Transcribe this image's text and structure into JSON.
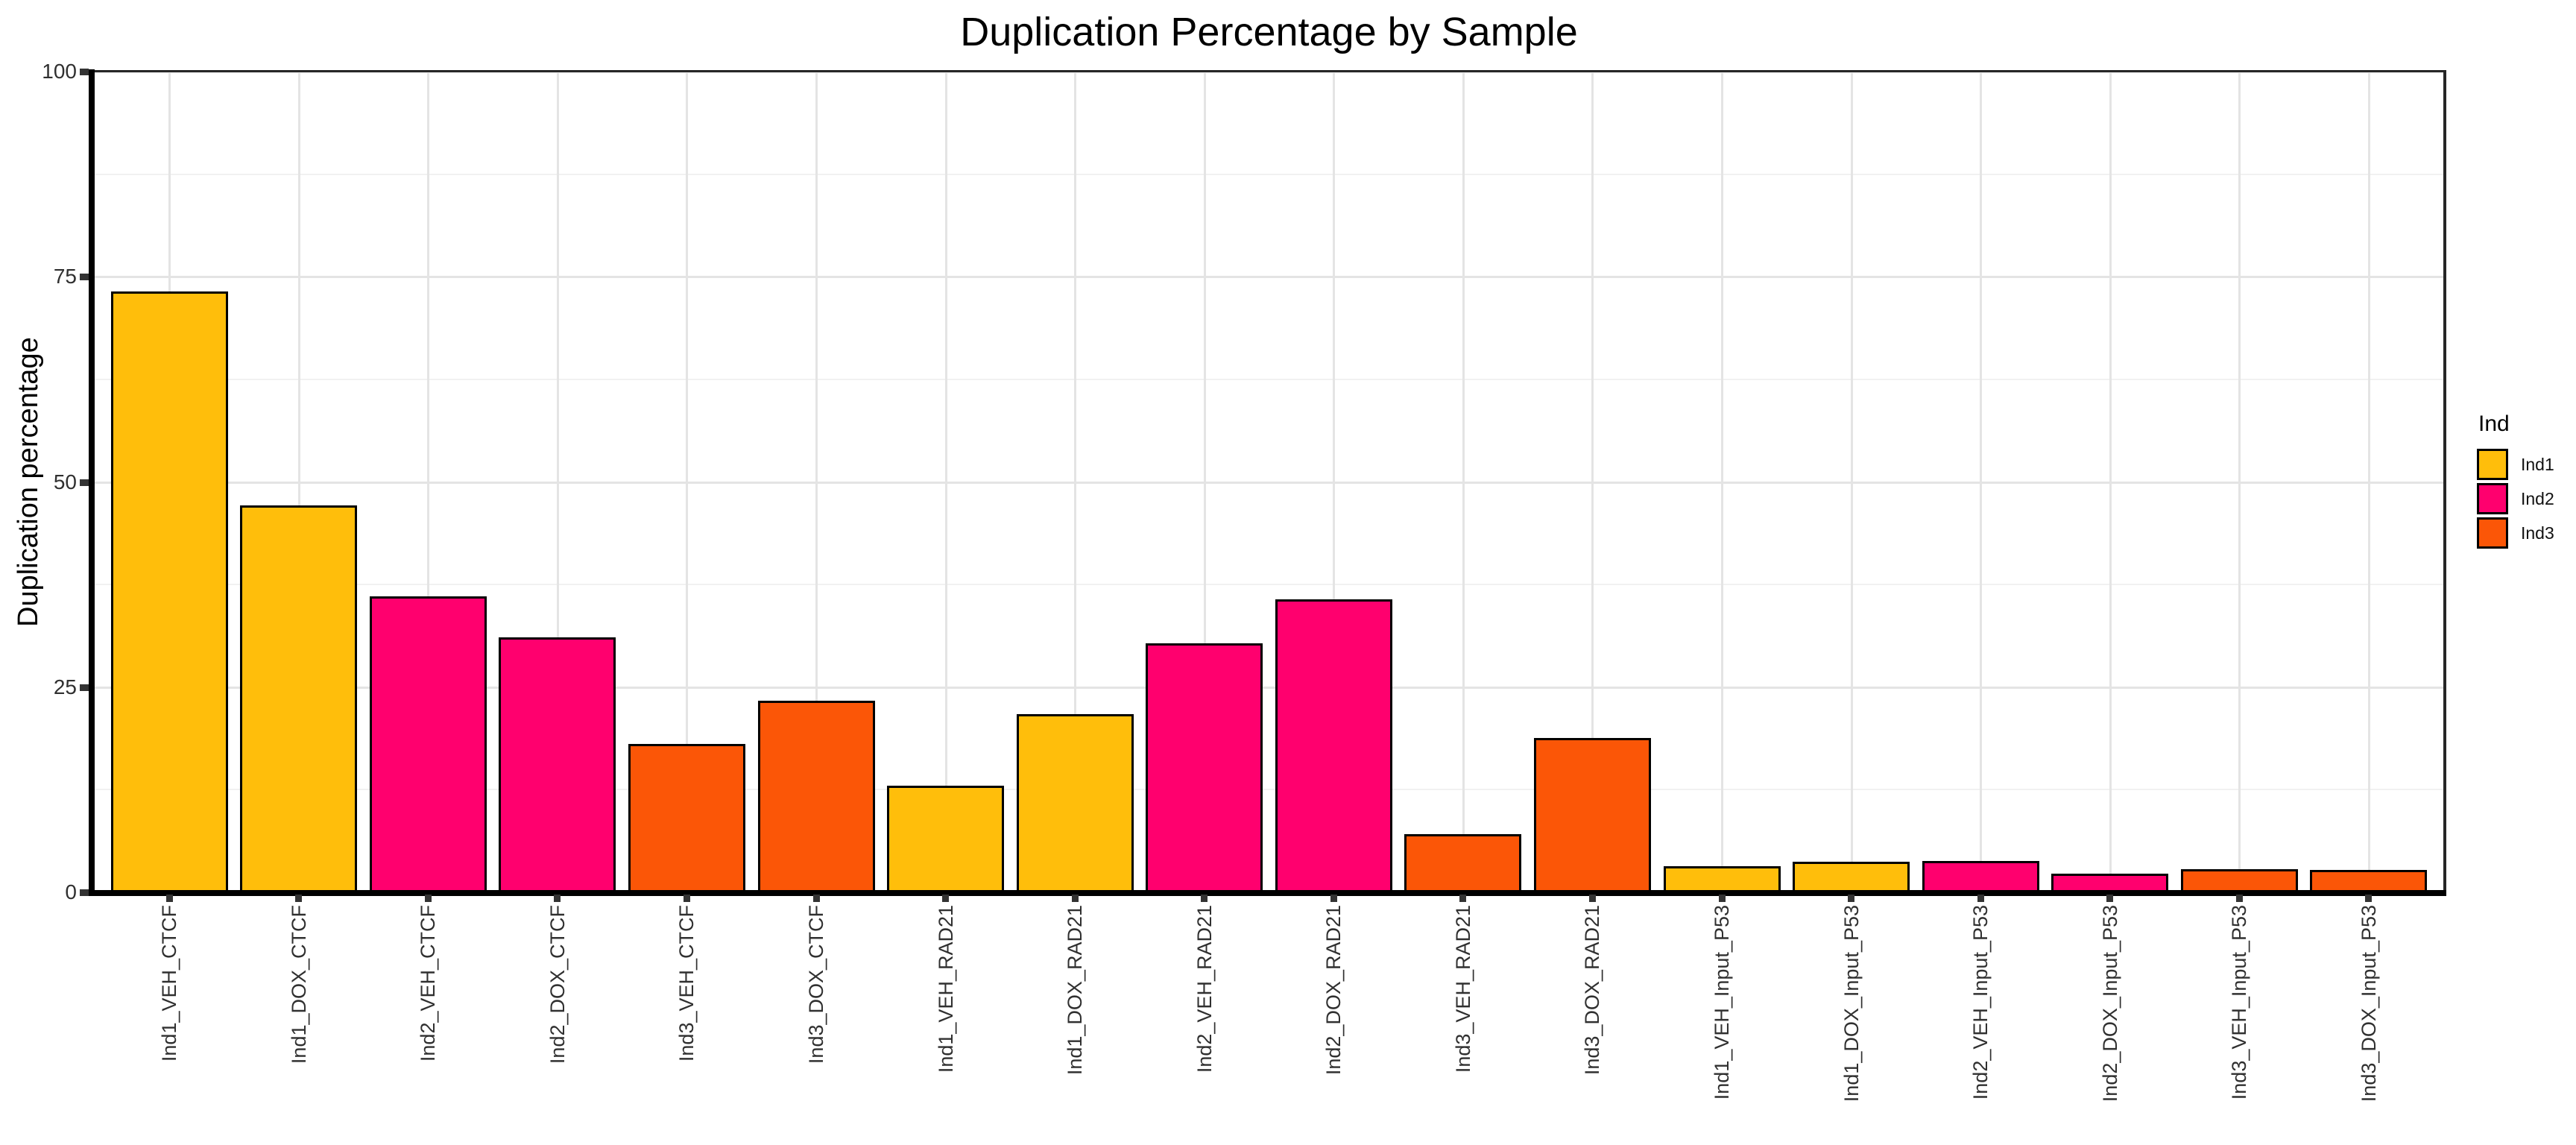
{
  "title": "Duplication Percentage by Sample",
  "y_axis": {
    "label": "Duplication percentage",
    "ticks": [
      0,
      25,
      50,
      75,
      100
    ],
    "minor_ticks": [
      12.5,
      37.5,
      62.5,
      87.5
    ],
    "min": 0,
    "max": 100
  },
  "legend": {
    "title": "Ind",
    "items": [
      {
        "label": "Ind1",
        "color": "#FFBE0B"
      },
      {
        "label": "Ind2",
        "color": "#FF006E"
      },
      {
        "label": "Ind3",
        "color": "#FB5607"
      }
    ]
  },
  "chart_data": {
    "type": "bar",
    "title": "Duplication Percentage by Sample",
    "xlabel": "",
    "ylabel": "Duplication percentage",
    "ylim": [
      0,
      100
    ],
    "grid": "horizontal major every 25, horizontal minor every 12.5, vertical major at each category center",
    "legend_position": "right",
    "legend_title": "Ind",
    "bar_outline_color": "#000000",
    "categories": [
      "Ind1_VEH_CTCF",
      "Ind1_DOX_CTCF",
      "Ind2_VEH_CTCF",
      "Ind2_DOX_CTCF",
      "Ind3_VEH_CTCF",
      "Ind3_DOX_CTCF",
      "Ind1_VEH_RAD21",
      "Ind1_DOX_RAD21",
      "Ind2_VEH_RAD21",
      "Ind2_DOX_RAD21",
      "Ind3_VEH_RAD21",
      "Ind3_DOX_RAD21",
      "Ind1_VEH_Input_P53",
      "Ind1_DOX_Input_P53",
      "Ind2_VEH_Input_P53",
      "Ind2_DOX_Input_P53",
      "Ind3_VEH_Input_P53",
      "Ind3_DOX_Input_P53"
    ],
    "values": [
      73.2,
      47.1,
      36.1,
      31.1,
      18.1,
      23.3,
      13.0,
      21.7,
      30.3,
      35.7,
      7.1,
      18.8,
      3.2,
      3.7,
      3.8,
      2.3,
      2.8,
      2.7
    ],
    "groups": [
      "Ind1",
      "Ind1",
      "Ind2",
      "Ind2",
      "Ind3",
      "Ind3",
      "Ind1",
      "Ind1",
      "Ind2",
      "Ind2",
      "Ind3",
      "Ind3",
      "Ind1",
      "Ind1",
      "Ind2",
      "Ind2",
      "Ind3",
      "Ind3"
    ],
    "colors": {
      "Ind1": "#FFBE0B",
      "Ind2": "#FF006E",
      "Ind3": "#FB5607"
    }
  }
}
